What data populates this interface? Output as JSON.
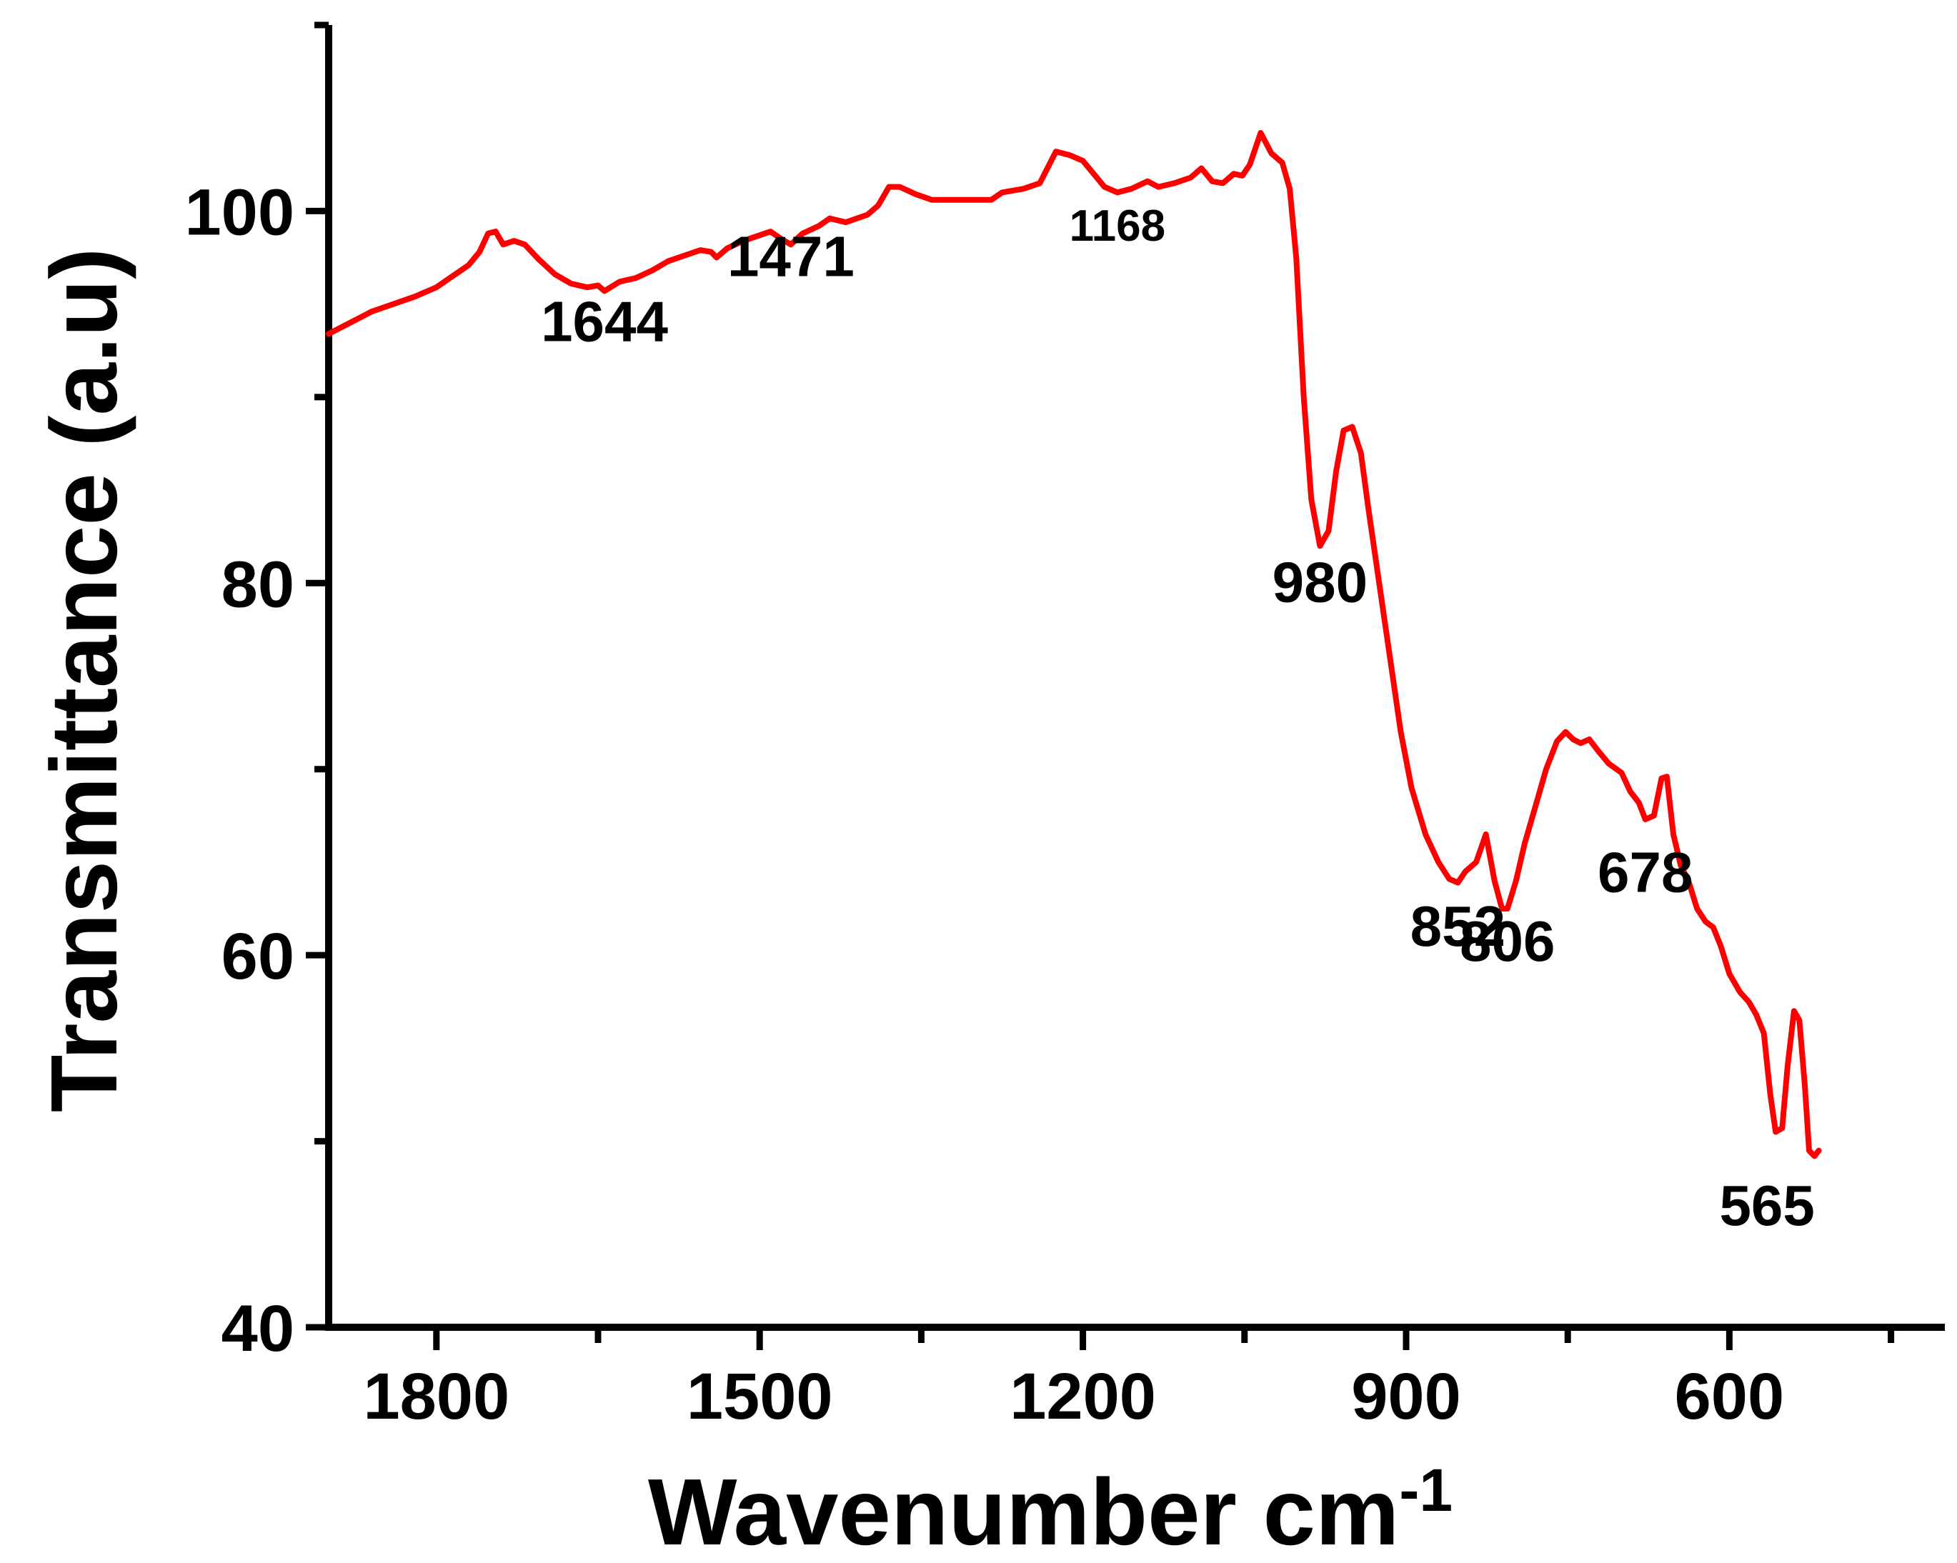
{
  "chart_data": {
    "type": "line",
    "xlabel": "Wavenumber cm",
    "xlabel_superscript": "-1",
    "ylabel": "Transmittance (a.u)",
    "xlim": [
      1900,
      400
    ],
    "ylim": [
      40,
      110
    ],
    "x_reversed": true,
    "x_ticks": [
      1800,
      1500,
      1200,
      900,
      600
    ],
    "y_ticks": [
      40,
      60,
      80,
      100
    ],
    "grid": false,
    "legend": "none",
    "line_color": "#ff0000",
    "series": [
      {
        "points": [
          [
            1900,
            93.4
          ],
          [
            1880,
            94.0
          ],
          [
            1860,
            94.6
          ],
          [
            1840,
            95.0
          ],
          [
            1820,
            95.4
          ],
          [
            1800,
            95.9
          ],
          [
            1785,
            96.5
          ],
          [
            1770,
            97.1
          ],
          [
            1760,
            97.8
          ],
          [
            1752,
            98.8
          ],
          [
            1745,
            98.9
          ],
          [
            1738,
            98.2
          ],
          [
            1728,
            98.4
          ],
          [
            1718,
            98.2
          ],
          [
            1705,
            97.4
          ],
          [
            1690,
            96.6
          ],
          [
            1675,
            96.1
          ],
          [
            1660,
            95.9
          ],
          [
            1650,
            96.0
          ],
          [
            1644,
            95.7
          ],
          [
            1630,
            96.2
          ],
          [
            1615,
            96.4
          ],
          [
            1600,
            96.8
          ],
          [
            1585,
            97.3
          ],
          [
            1570,
            97.6
          ],
          [
            1555,
            97.9
          ],
          [
            1545,
            97.8
          ],
          [
            1540,
            97.5
          ],
          [
            1530,
            98.0
          ],
          [
            1515,
            98.4
          ],
          [
            1500,
            98.7
          ],
          [
            1490,
            98.9
          ],
          [
            1480,
            98.5
          ],
          [
            1471,
            98.2
          ],
          [
            1460,
            98.8
          ],
          [
            1445,
            99.2
          ],
          [
            1435,
            99.6
          ],
          [
            1420,
            99.4
          ],
          [
            1400,
            99.8
          ],
          [
            1390,
            100.3
          ],
          [
            1380,
            101.3
          ],
          [
            1370,
            101.3
          ],
          [
            1355,
            100.9
          ],
          [
            1340,
            100.6
          ],
          [
            1320,
            100.6
          ],
          [
            1300,
            100.6
          ],
          [
            1285,
            100.6
          ],
          [
            1275,
            101.0
          ],
          [
            1255,
            101.2
          ],
          [
            1240,
            101.5
          ],
          [
            1225,
            103.2
          ],
          [
            1212,
            103.0
          ],
          [
            1200,
            102.7
          ],
          [
            1190,
            102.0
          ],
          [
            1180,
            101.3
          ],
          [
            1168,
            101.0
          ],
          [
            1155,
            101.2
          ],
          [
            1140,
            101.6
          ],
          [
            1130,
            101.3
          ],
          [
            1115,
            101.5
          ],
          [
            1100,
            101.8
          ],
          [
            1090,
            102.3
          ],
          [
            1080,
            101.6
          ],
          [
            1070,
            101.5
          ],
          [
            1060,
            102.0
          ],
          [
            1052,
            101.9
          ],
          [
            1045,
            102.5
          ],
          [
            1035,
            104.2
          ],
          [
            1025,
            103.1
          ],
          [
            1015,
            102.6
          ],
          [
            1008,
            101.2
          ],
          [
            1002,
            97.5
          ],
          [
            995,
            90.0
          ],
          [
            988,
            84.5
          ],
          [
            980,
            82.0
          ],
          [
            972,
            82.8
          ],
          [
            965,
            86.0
          ],
          [
            958,
            88.2
          ],
          [
            950,
            88.4
          ],
          [
            942,
            87.0
          ],
          [
            935,
            84.0
          ],
          [
            925,
            80.0
          ],
          [
            915,
            76.0
          ],
          [
            905,
            72.0
          ],
          [
            895,
            69.0
          ],
          [
            882,
            66.5
          ],
          [
            870,
            65.0
          ],
          [
            860,
            64.1
          ],
          [
            852,
            63.9
          ],
          [
            845,
            64.5
          ],
          [
            835,
            65.0
          ],
          [
            826,
            66.5
          ],
          [
            818,
            64.0
          ],
          [
            811,
            62.5
          ],
          [
            806,
            62.5
          ],
          [
            798,
            64.0
          ],
          [
            790,
            66.0
          ],
          [
            780,
            68.0
          ],
          [
            770,
            70.0
          ],
          [
            760,
            71.5
          ],
          [
            752,
            72.0
          ],
          [
            745,
            71.6
          ],
          [
            738,
            71.4
          ],
          [
            730,
            71.6
          ],
          [
            722,
            71.0
          ],
          [
            712,
            70.3
          ],
          [
            700,
            69.8
          ],
          [
            692,
            68.8
          ],
          [
            684,
            68.2
          ],
          [
            678,
            67.3
          ],
          [
            670,
            67.5
          ],
          [
            663,
            69.5
          ],
          [
            658,
            69.6
          ],
          [
            652,
            66.5
          ],
          [
            645,
            64.8
          ],
          [
            638,
            64.0
          ],
          [
            630,
            62.5
          ],
          [
            622,
            61.8
          ],
          [
            615,
            61.5
          ],
          [
            608,
            60.5
          ],
          [
            600,
            59.0
          ],
          [
            590,
            58.0
          ],
          [
            582,
            57.5
          ],
          [
            575,
            56.8
          ],
          [
            568,
            55.8
          ],
          [
            562,
            52.5
          ],
          [
            557,
            50.5
          ],
          [
            551,
            50.7
          ],
          [
            546,
            54.0
          ],
          [
            540,
            57.0
          ],
          [
            535,
            56.5
          ],
          [
            530,
            53.0
          ],
          [
            526,
            49.5
          ],
          [
            521,
            49.2
          ],
          [
            517,
            49.5
          ]
        ]
      }
    ],
    "annotations": [
      {
        "text": "1644",
        "x": 1644,
        "y": 93.0,
        "size": "large"
      },
      {
        "text": "1471",
        "x": 1471,
        "y": 96.5,
        "size": "large"
      },
      {
        "text": "1168",
        "x": 1168,
        "y": 98.4,
        "size": "small"
      },
      {
        "text": "980",
        "x": 980,
        "y": 79.0,
        "size": "large"
      },
      {
        "text": "852",
        "x": 852,
        "y": 60.5,
        "size": "large"
      },
      {
        "text": "806",
        "x": 806,
        "y": 59.7,
        "size": "large"
      },
      {
        "text": "678",
        "x": 678,
        "y": 63.4,
        "size": "large"
      },
      {
        "text": "565",
        "x": 565,
        "y": 45.5,
        "size": "large"
      }
    ]
  }
}
